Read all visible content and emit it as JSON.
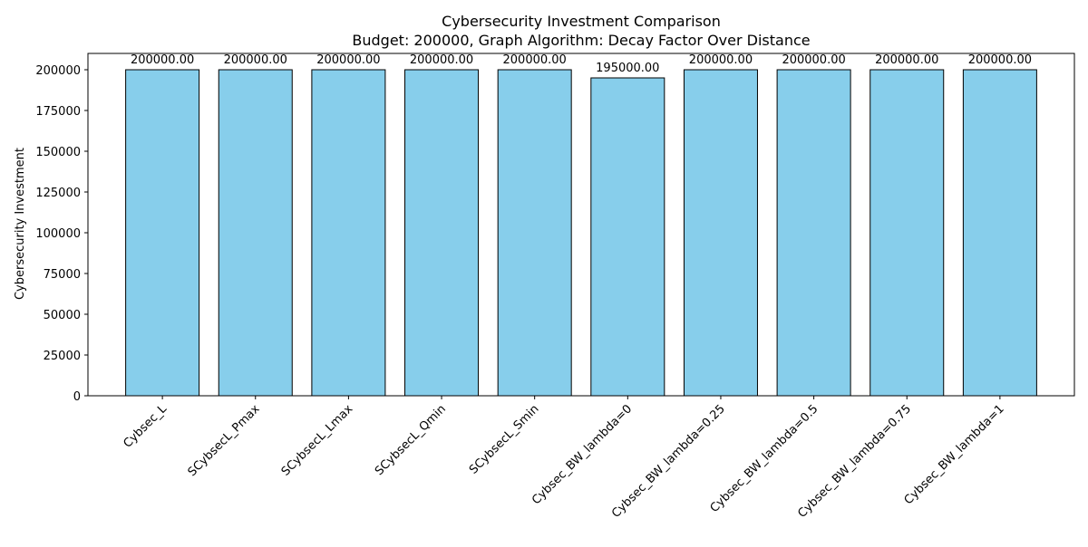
{
  "colors": {
    "bar_fill": "#87ceeb",
    "bar_stroke": "#000000",
    "axis": "#000000",
    "background": "#ffffff"
  },
  "chart_data": {
    "type": "bar",
    "title": "Cybersecurity Investment Comparison",
    "subtitle": "Budget: 200000, Graph Algorithm: Decay Factor Over Distance",
    "xlabel": "",
    "ylabel": "Cybersecurity Investment",
    "categories": [
      "Cybsec_L",
      "SCybsecL_Pmax",
      "SCybsecL_Lmax",
      "SCybsecL_Qmin",
      "SCybsecL_Smin",
      "Cybsec_BW_lambda=0",
      "Cybsec_BW_lambda=0.25",
      "Cybsec_BW_lambda=0.5",
      "Cybsec_BW_lambda=0.75",
      "Cybsec_BW_lambda=1"
    ],
    "values": [
      200000,
      200000,
      200000,
      200000,
      200000,
      195000,
      200000,
      200000,
      200000,
      200000
    ],
    "value_labels": [
      "200000.00",
      "200000.00",
      "200000.00",
      "200000.00",
      "200000.00",
      "195000.00",
      "200000.00",
      "200000.00",
      "200000.00",
      "200000.00"
    ],
    "ylim": [
      0,
      210000
    ],
    "yticks": [
      0,
      25000,
      50000,
      75000,
      100000,
      125000,
      150000,
      175000,
      200000
    ],
    "ytick_labels": [
      "0",
      "25000",
      "50000",
      "75000",
      "100000",
      "125000",
      "150000",
      "175000",
      "200000"
    ],
    "grid": false,
    "legend": "none"
  }
}
